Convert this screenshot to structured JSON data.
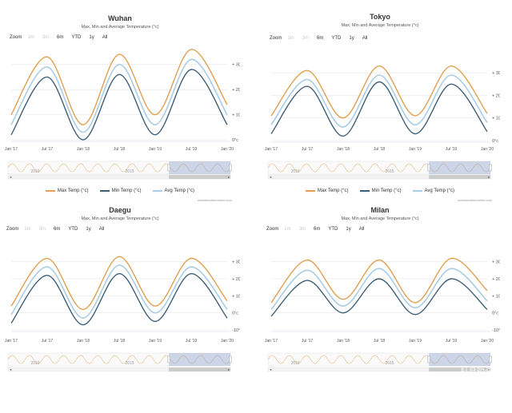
{
  "colors": {
    "max": "#e0a050",
    "min": "#3e5f78",
    "avg": "#a8cde4",
    "grid": "#e6e6e6",
    "navMask": "rgba(102,133,194,0.3)"
  },
  "shared": {
    "subtitle": "Max, Min and Average Temperature (°c)",
    "zoom_label": "Zoom",
    "zoom_buttons": [
      "1m",
      "3m",
      "6m",
      "YTD",
      "1y",
      "All"
    ],
    "legend": [
      "Max Temp (°c)",
      "Min Temp (°c)",
      "Avg Temp (°c)"
    ],
    "credit": "worldweatheronline.com",
    "x_labels": [
      "Jan '17",
      "Jul '17",
      "Jan '18",
      "Jul '18",
      "Jan '19",
      "Jul '19",
      "Jan '20"
    ],
    "nav_labels": [
      "2010",
      "2015"
    ],
    "watermark": "红豆奶茶大"
  },
  "chart_data": [
    {
      "type": "line",
      "title": "Wuhan",
      "x": [
        "Jan '17",
        "Jul '17",
        "Jan '18",
        "Jul '18",
        "Jan '19",
        "Jul '19",
        "Jan '20"
      ],
      "ylim": [
        0,
        35
      ],
      "yticks": [
        "0°c",
        "10°c",
        "20°c",
        "30°c"
      ],
      "series": [
        {
          "name": "Max Temp (°c)",
          "values": [
            10,
            33,
            6,
            34,
            10,
            36,
            14
          ]
        },
        {
          "name": "Min Temp (°c)",
          "values": [
            2,
            25,
            0,
            26,
            2,
            28,
            6
          ]
        },
        {
          "name": "Avg Temp (°c)",
          "values": [
            6,
            29,
            3,
            30,
            6,
            32,
            10
          ]
        }
      ]
    },
    {
      "type": "line",
      "title": "Tokyo",
      "x": [
        "Jan '17",
        "Jul '17",
        "Jan '18",
        "Jul '18",
        "Jan '19",
        "Jul '19",
        "Jan '20"
      ],
      "ylim": [
        0,
        35
      ],
      "yticks": [
        "0°c",
        "10°c",
        "20°c",
        "30°c"
      ],
      "series": [
        {
          "name": "Max Temp (°c)",
          "values": [
            11,
            31,
            10,
            33,
            11,
            33,
            12
          ]
        },
        {
          "name": "Min Temp (°c)",
          "values": [
            3,
            24,
            2,
            26,
            3,
            25,
            4
          ]
        },
        {
          "name": "Avg Temp (°c)",
          "values": [
            7,
            27,
            6,
            29,
            7,
            29,
            8
          ]
        }
      ]
    },
    {
      "type": "line",
      "title": "Daegu",
      "x": [
        "Jan '17",
        "Jul '17",
        "Jan '18",
        "Jul '18",
        "Jan '19",
        "Jul '19",
        "Jan '20"
      ],
      "ylim": [
        -10,
        35
      ],
      "yticks": [
        "-10°c",
        "0°c",
        "10°c",
        "20°c",
        "30°c"
      ],
      "series": [
        {
          "name": "Max Temp (°c)",
          "values": [
            4,
            32,
            2,
            33,
            4,
            32,
            7
          ]
        },
        {
          "name": "Min Temp (°c)",
          "values": [
            -6,
            22,
            -7,
            23,
            -5,
            23,
            -3
          ]
        },
        {
          "name": "Avg Temp (°c)",
          "values": [
            -1,
            27,
            -3,
            28,
            0,
            27,
            2
          ]
        }
      ]
    },
    {
      "type": "line",
      "title": "Milan",
      "x": [
        "Jan '17",
        "Jul '17",
        "Jan '18",
        "Jul '18",
        "Jan '19",
        "Jul '19",
        "Jan '20"
      ],
      "ylim": [
        -10,
        35
      ],
      "yticks": [
        "-10°c",
        "0°c",
        "10°c",
        "20°c",
        "30°c"
      ],
      "series": [
        {
          "name": "Max Temp (°c)",
          "values": [
            6,
            31,
            8,
            31,
            6,
            32,
            13
          ]
        },
        {
          "name": "Min Temp (°c)",
          "values": [
            -2,
            19,
            0,
            20,
            -1,
            20,
            2
          ]
        },
        {
          "name": "Avg Temp (°c)",
          "values": [
            2,
            25,
            4,
            26,
            3,
            26,
            7
          ]
        }
      ]
    }
  ]
}
